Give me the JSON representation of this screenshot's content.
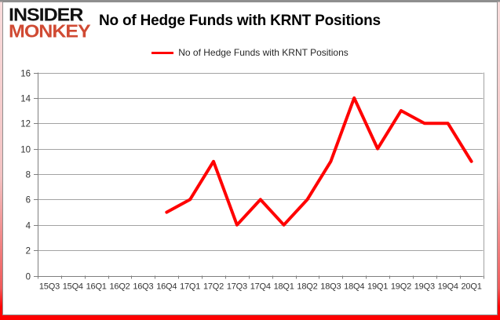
{
  "logo": {
    "line1": "INSIDER",
    "line2": "MONKEY"
  },
  "header": {
    "title": "No of Hedge Funds with KRNT Positions"
  },
  "legend": {
    "label": "No of Hedge Funds with KRNT Positions"
  },
  "colors": {
    "series_line": "#ff0000",
    "logo_accent": "#d04a33",
    "gridline": "#a3a3a3",
    "axis": "#7f7f7f",
    "tick_label": "#333333",
    "frame_shadow": "#ff0000"
  },
  "chart_data": {
    "type": "line",
    "title": "No of Hedge Funds with KRNT Positions",
    "categories": [
      "15Q3",
      "15Q4",
      "16Q1",
      "16Q2",
      "16Q3",
      "16Q4",
      "17Q1",
      "17Q2",
      "17Q3",
      "17Q4",
      "18Q1",
      "18Q2",
      "18Q3",
      "18Q4",
      "19Q1",
      "19Q2",
      "19Q3",
      "19Q4",
      "20Q1"
    ],
    "series": [
      {
        "name": "No of Hedge Funds with KRNT Positions",
        "color": "#ff0000",
        "values": [
          null,
          null,
          null,
          null,
          null,
          5,
          6,
          9,
          4,
          6,
          4,
          6,
          9,
          14,
          10,
          13,
          12,
          12,
          9
        ]
      }
    ],
    "xlabel": "",
    "ylabel": "",
    "ylim": [
      0,
      16
    ],
    "ytick_interval": 2,
    "grid": true,
    "legend_position": "top-center"
  }
}
